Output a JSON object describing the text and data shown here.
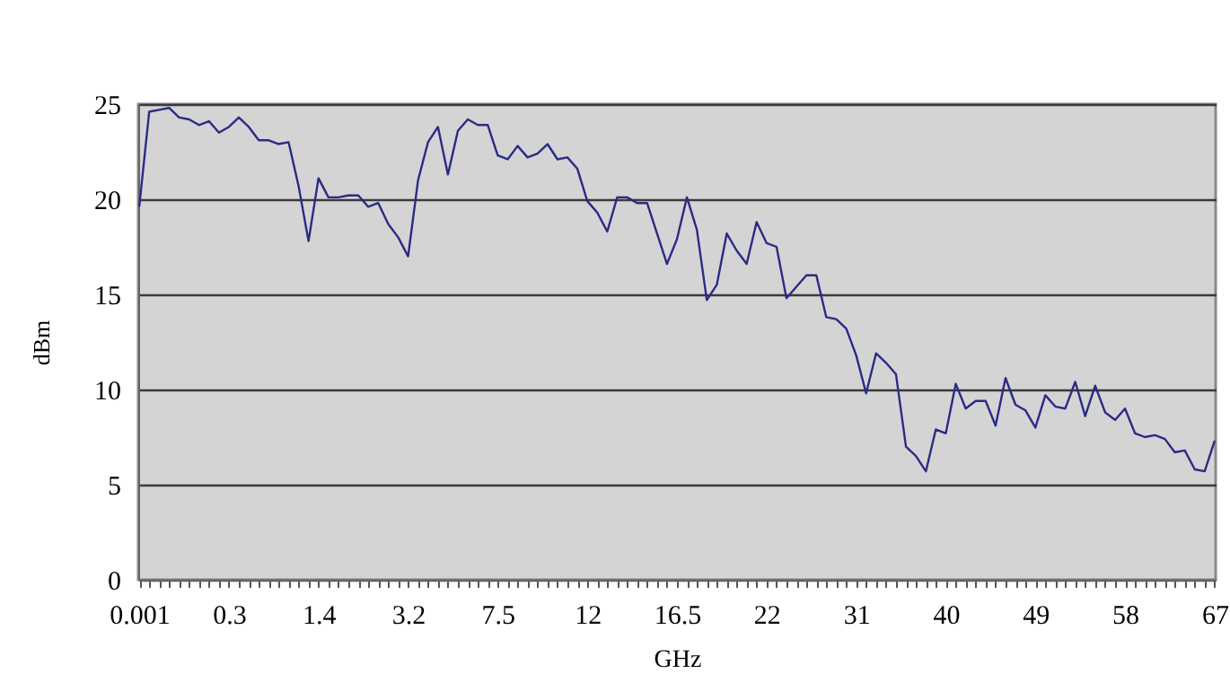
{
  "chart_data": {
    "type": "line",
    "xlabel": "GHz",
    "ylabel": "dBm",
    "grid": "y",
    "legend": false,
    "marker": "none",
    "line_style": "solid",
    "categories": [
      "0.001",
      null,
      null,
      null,
      null,
      null,
      null,
      null,
      null,
      "0.3",
      null,
      null,
      null,
      null,
      null,
      null,
      null,
      null,
      "1.4",
      null,
      null,
      null,
      null,
      null,
      null,
      null,
      null,
      "3.2",
      null,
      null,
      null,
      null,
      null,
      null,
      null,
      null,
      "7.5",
      null,
      null,
      null,
      null,
      null,
      null,
      null,
      null,
      "12",
      null,
      null,
      null,
      null,
      null,
      null,
      null,
      null,
      "16.5",
      null,
      null,
      null,
      null,
      null,
      null,
      null,
      null,
      "22",
      null,
      null,
      null,
      null,
      null,
      null,
      null,
      null,
      "31",
      null,
      null,
      null,
      null,
      null,
      null,
      null,
      null,
      "40",
      null,
      null,
      null,
      null,
      null,
      null,
      null,
      null,
      "49",
      null,
      null,
      null,
      null,
      null,
      null,
      null,
      null,
      "58",
      null,
      null,
      null,
      null,
      null,
      null,
      null,
      null,
      "67"
    ],
    "series": [
      {
        "color": "#2b2b86",
        "values": [
          19.6,
          24.6,
          24.7,
          24.8,
          24.3,
          24.2,
          23.9,
          24.1,
          23.5,
          23.8,
          24.3,
          23.8,
          23.1,
          23.1,
          22.9,
          23.0,
          20.7,
          17.8,
          21.1,
          20.1,
          20.1,
          20.2,
          20.2,
          19.6,
          19.8,
          18.7,
          18.0,
          17.0,
          21.0,
          23.0,
          23.8,
          21.3,
          23.6,
          24.2,
          23.9,
          23.9,
          22.3,
          22.1,
          22.8,
          22.2,
          22.4,
          22.9,
          22.1,
          22.2,
          21.6,
          19.9,
          19.3,
          18.3,
          20.1,
          20.1,
          19.8,
          19.8,
          18.2,
          16.6,
          17.9,
          20.1,
          18.4,
          14.7,
          15.5,
          18.2,
          17.3,
          16.6,
          18.8,
          17.7,
          17.5,
          14.8,
          15.4,
          16.0,
          16.0,
          13.8,
          13.7,
          13.2,
          11.8,
          9.8,
          11.9,
          11.4,
          10.8,
          7.0,
          6.5,
          5.7,
          7.9,
          7.7,
          10.3,
          9.0,
          9.4,
          9.4,
          8.1,
          10.6,
          9.2,
          8.9,
          8.0,
          9.7,
          9.1,
          9.0,
          10.4,
          8.6,
          10.2,
          8.8,
          8.4,
          9.0,
          7.7,
          7.5,
          7.6,
          7.4,
          6.7,
          6.8,
          5.8,
          5.7,
          7.3
        ]
      }
    ],
    "ylim": [
      0,
      25
    ],
    "yticks": [
      0,
      5,
      10,
      15,
      20,
      25
    ]
  }
}
